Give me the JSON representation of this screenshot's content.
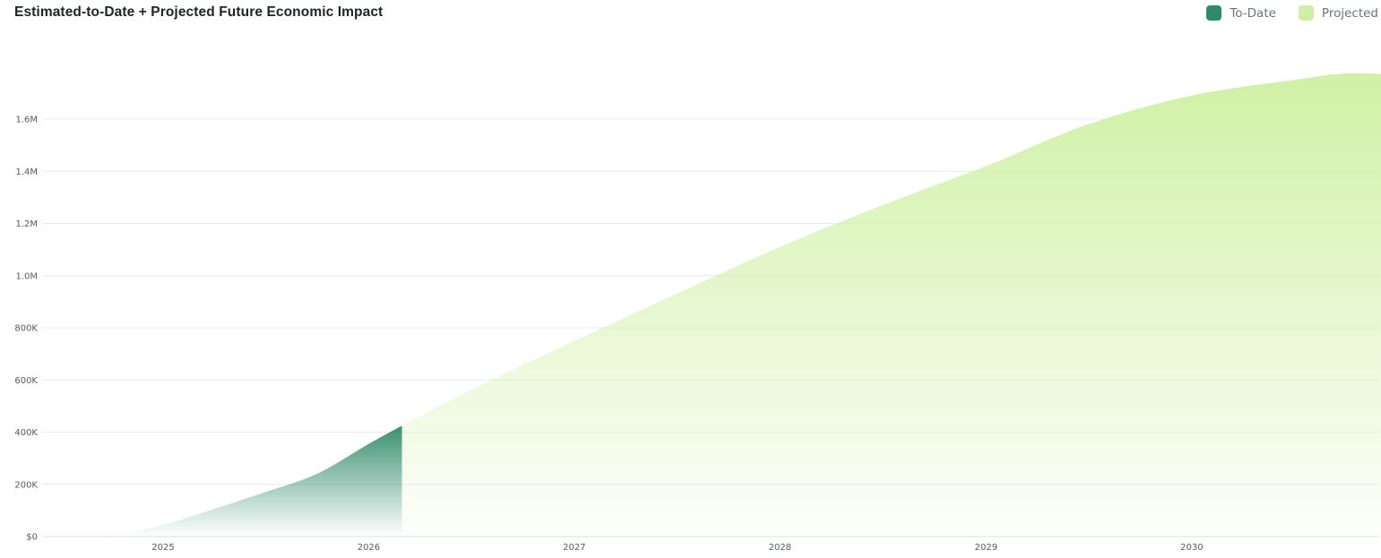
{
  "header": {
    "title": "Estimated-to-Date + Projected Future Economic Impact"
  },
  "legend": [
    {
      "label": "To-Date",
      "color": "#2f8a6a"
    },
    {
      "label": "Projected",
      "color": "#cdf0a6"
    }
  ],
  "chart_data": {
    "type": "area",
    "title": "Estimated-to-Date + Projected Future Economic Impact",
    "xlabel": "",
    "ylabel": "",
    "grid": true,
    "legend_position": "top-right",
    "x_range": [
      "2024-07-01",
      "2030-12-31"
    ],
    "ylim": [
      0,
      1800000
    ],
    "y_ticks": [
      {
        "value": 0,
        "label": "$0"
      },
      {
        "value": 200000,
        "label": "200K"
      },
      {
        "value": 400000,
        "label": "400K"
      },
      {
        "value": 600000,
        "label": "600K"
      },
      {
        "value": 800000,
        "label": "800K"
      },
      {
        "value": 1000000,
        "label": "1.0M"
      },
      {
        "value": 1200000,
        "label": "1.2M"
      },
      {
        "value": 1400000,
        "label": "1.4M"
      },
      {
        "value": 1600000,
        "label": "1.6M"
      }
    ],
    "x_ticks": [
      {
        "value": "2025-01-01",
        "label": "2025"
      },
      {
        "value": "2026-01-01",
        "label": "2026"
      },
      {
        "value": "2027-01-01",
        "label": "2027"
      },
      {
        "value": "2028-01-01",
        "label": "2028"
      },
      {
        "value": "2029-01-01",
        "label": "2029"
      },
      {
        "value": "2030-01-01",
        "label": "2030"
      }
    ],
    "series": [
      {
        "name": "To-Date",
        "color": "#2f8a6a",
        "points": [
          [
            "2024-07-01",
            0
          ],
          [
            "2024-10-01",
            8000
          ],
          [
            "2025-01-01",
            45000
          ],
          [
            "2025-04-01",
            105000
          ],
          [
            "2025-07-01",
            170000
          ],
          [
            "2025-10-01",
            240000
          ],
          [
            "2026-01-01",
            355000
          ],
          [
            "2026-03-01",
            425000
          ]
        ]
      },
      {
        "name": "Projected",
        "color": "#cdf0a6",
        "points": [
          [
            "2026-03-01",
            425000
          ],
          [
            "2026-07-01",
            560000
          ],
          [
            "2027-01-01",
            750000
          ],
          [
            "2027-07-01",
            930000
          ],
          [
            "2028-01-01",
            1110000
          ],
          [
            "2028-07-01",
            1270000
          ],
          [
            "2029-01-01",
            1420000
          ],
          [
            "2029-07-01",
            1580000
          ],
          [
            "2030-01-01",
            1690000
          ],
          [
            "2030-07-01",
            1750000
          ],
          [
            "2030-10-01",
            1775000
          ],
          [
            "2030-12-31",
            1770000
          ]
        ]
      }
    ]
  }
}
